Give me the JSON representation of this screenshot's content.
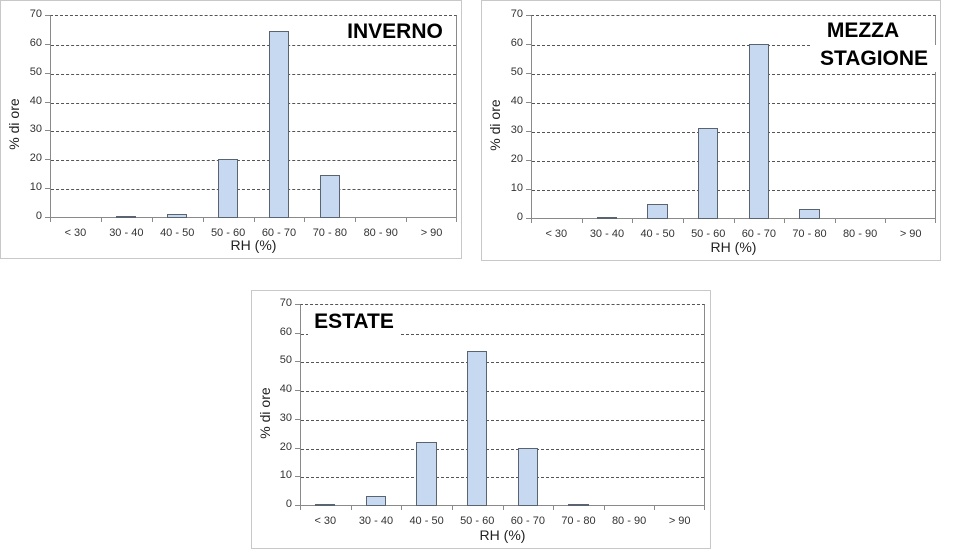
{
  "chart_data": [
    {
      "type": "bar",
      "title": "INVERNO",
      "categories": [
        "< 30",
        "30 - 40",
        "40 - 50",
        "50 - 60",
        "60 - 70",
        "70 - 80",
        "80 - 90",
        "> 90"
      ],
      "values": [
        0,
        0.3,
        1.0,
        20.0,
        64.4,
        14.5,
        0,
        0
      ],
      "xlabel": "RH (%)",
      "ylabel": "% di ore",
      "ylim": [
        0,
        70
      ],
      "yticks": [
        0,
        10,
        20,
        30,
        40,
        50,
        60,
        70
      ],
      "grid": true,
      "bar_color": "#c6d9f1"
    },
    {
      "type": "bar",
      "title": "MEZZA STAGIONE",
      "categories": [
        "< 30",
        "30 - 40",
        "40 - 50",
        "50 - 60",
        "60 - 70",
        "70 - 80",
        "80 - 90",
        "> 90"
      ],
      "values": [
        0,
        0.3,
        4.8,
        31.2,
        60.1,
        3.0,
        0,
        0
      ],
      "xlabel": "RH (%)",
      "ylabel": "% di ore",
      "ylim": [
        0,
        70
      ],
      "yticks": [
        0,
        10,
        20,
        30,
        40,
        50,
        60,
        70
      ],
      "grid": true,
      "bar_color": "#c6d9f1"
    },
    {
      "type": "bar",
      "title": "ESTATE",
      "categories": [
        "< 30",
        "30 - 40",
        "40 - 50",
        "50 - 60",
        "60 - 70",
        "70 - 80",
        "80 - 90",
        "> 90"
      ],
      "values": [
        0.3,
        3.3,
        22.0,
        53.7,
        20.0,
        0.3,
        0,
        0
      ],
      "xlabel": "RH (%)",
      "ylabel": "% di ore",
      "ylim": [
        0,
        70
      ],
      "yticks": [
        0,
        10,
        20,
        30,
        40,
        50,
        60,
        70
      ],
      "grid": true,
      "bar_color": "#c6d9f1"
    }
  ],
  "charts": {
    "inverno": {
      "title": "INVERNO",
      "xlabel": "RH (%)",
      "ylabel": "% di ore"
    },
    "mezza": {
      "title_line1": "MEZZA",
      "title_line2": "STAGIONE",
      "xlabel": "RH (%)",
      "ylabel": "% di ore"
    },
    "estate": {
      "title": "ESTATE",
      "xlabel": "RH (%)",
      "ylabel": "% di ore"
    }
  }
}
